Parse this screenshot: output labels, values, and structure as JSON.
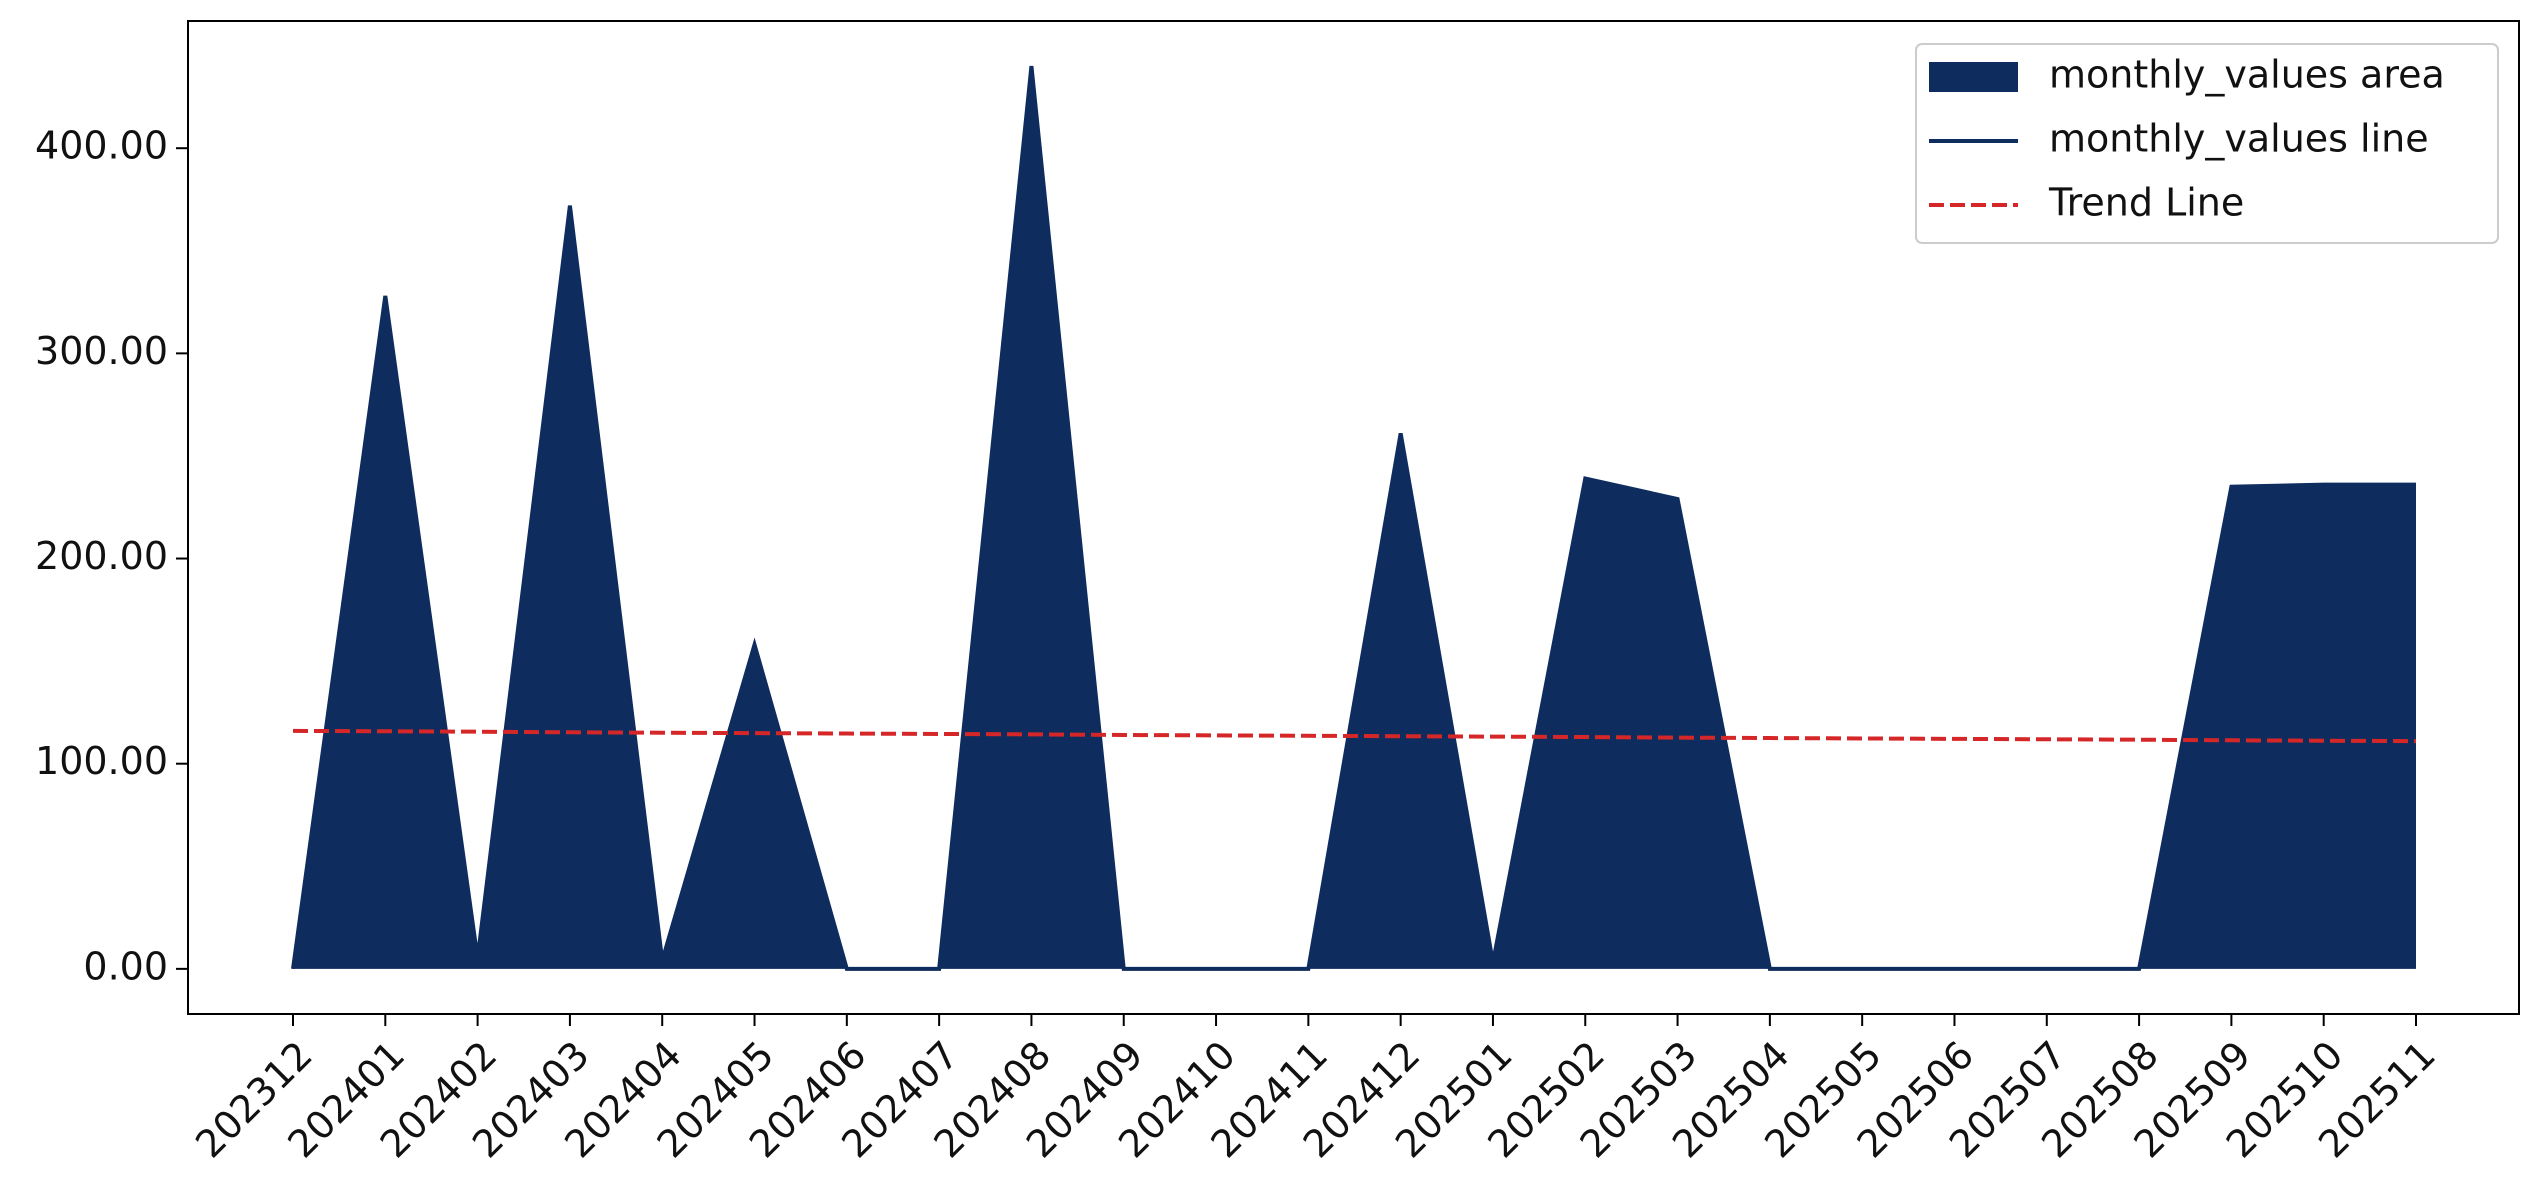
{
  "chart_data": {
    "type": "area",
    "categories": [
      "202312",
      "202401",
      "202402",
      "202403",
      "202404",
      "202405",
      "202406",
      "202407",
      "202408",
      "202409",
      "202410",
      "202411",
      "202412",
      "202501",
      "202502",
      "202503",
      "202504",
      "202505",
      "202506",
      "202507",
      "202508",
      "202509",
      "202510",
      "202511"
    ],
    "series": [
      {
        "name": "monthly_values area",
        "kind": "area",
        "color": "#0e2c5e",
        "values": [
          0,
          328,
          5,
          372,
          4,
          158,
          0,
          0,
          440,
          0,
          0,
          0,
          261,
          3,
          239,
          229,
          0,
          0,
          0,
          0,
          0,
          235,
          236,
          236
        ]
      },
      {
        "name": "monthly_values line",
        "kind": "line",
        "color": "#0e2c5e",
        "values": [
          0,
          328,
          5,
          372,
          4,
          158,
          0,
          0,
          440,
          0,
          0,
          0,
          261,
          3,
          239,
          229,
          0,
          0,
          0,
          0,
          0,
          235,
          236,
          236
        ]
      },
      {
        "name": "Trend Line",
        "kind": "dashed",
        "color": "#d62728",
        "values": [
          116,
          115.8,
          115.6,
          115.3,
          115.1,
          114.9,
          114.7,
          114.5,
          114.3,
          114,
          113.8,
          113.6,
          113.4,
          113.2,
          113,
          112.7,
          112.5,
          112.3,
          112.1,
          111.9,
          111.7,
          111.4,
          111.2,
          111
        ]
      }
    ],
    "ylim": [
      -22,
      462
    ],
    "yticks": [
      {
        "value": 0,
        "label": "0.00"
      },
      {
        "value": 100,
        "label": "100.00"
      },
      {
        "value": 200,
        "label": "200.00"
      },
      {
        "value": 300,
        "label": "300.00"
      },
      {
        "value": 400,
        "label": "400.00"
      }
    ],
    "legend": "upper right"
  }
}
